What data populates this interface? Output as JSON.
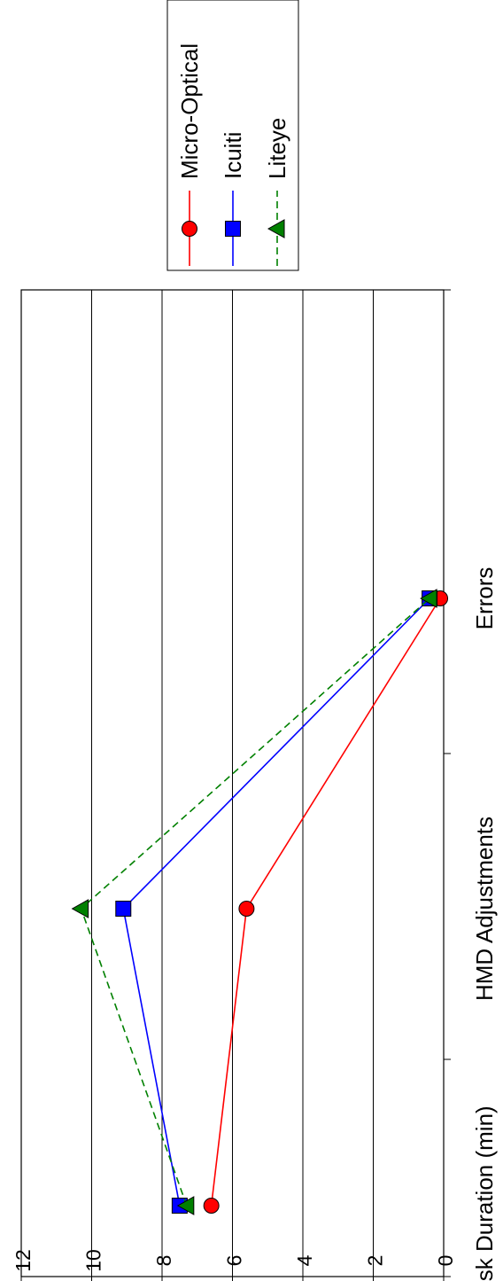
{
  "chart_data": {
    "type": "line",
    "orientation": "rotated-90-ccw",
    "categories": [
      "Task Duration (min)",
      "HMD Adjustments",
      "Errors"
    ],
    "ylim": [
      0,
      12
    ],
    "yticks": [
      "0",
      "2",
      "4",
      "6",
      "8",
      "10",
      "12"
    ],
    "grid": true,
    "legend_position": "top-right",
    "series": [
      {
        "name": "Micro-Optical",
        "values": [
          6.6,
          5.6,
          0.1
        ],
        "color": "#ff0000",
        "marker": "circle",
        "line": "solid"
      },
      {
        "name": "Icuiti",
        "values": [
          7.5,
          9.1,
          0.4
        ],
        "color": "#0000ff",
        "marker": "square",
        "line": "solid"
      },
      {
        "name": "Liteye",
        "values": [
          7.3,
          10.3,
          0.4
        ],
        "color": "#008000",
        "marker": "triangle",
        "line": "dashed"
      }
    ],
    "title": "",
    "xlabel": "",
    "ylabel": ""
  }
}
